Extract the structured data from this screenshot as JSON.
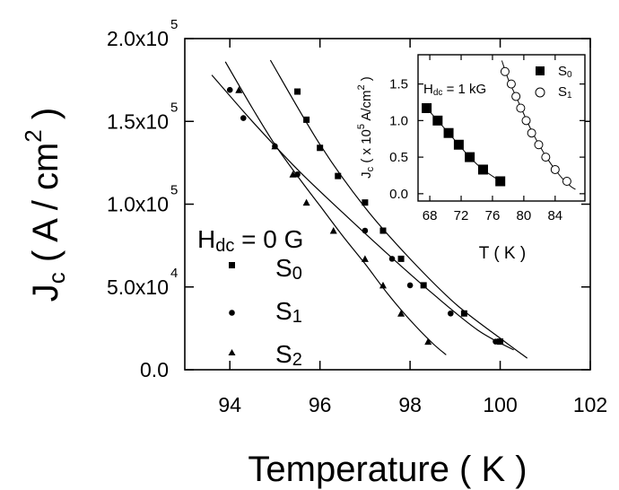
{
  "chart_data": [
    {
      "type": "scatter",
      "xlabel": "Temperature ( K )",
      "ylabel_main": "J",
      "ylabel_sub": "c",
      "ylabel_rest": " ( A / cm",
      "ylabel_sup": "2",
      "ylabel_close": " )",
      "xlim": [
        93,
        102
      ],
      "ylim": [
        0,
        200000
      ],
      "x_ticks": [
        94,
        96,
        98,
        100,
        102
      ],
      "x_tick_labels": [
        "94",
        "96",
        "98",
        "100",
        "102"
      ],
      "y_ticks": [
        {
          "value": 0,
          "mant": "0.0",
          "exp": ""
        },
        {
          "value": 50000,
          "mant": "5.0x10",
          "exp": "4"
        },
        {
          "value": 100000,
          "mant": "1.0x10",
          "exp": "5"
        },
        {
          "value": 150000,
          "mant": "1.5x10",
          "exp": "5"
        },
        {
          "value": 200000,
          "mant": "2.0x10",
          "exp": "5"
        }
      ],
      "annotation": {
        "main": "H",
        "sub": "dc",
        "rest": " = 0 G"
      },
      "series": [
        {
          "name": "S0",
          "label_main": "S",
          "label_sub": "0",
          "marker": "square",
          "x": [
            95.5,
            95.7,
            96.0,
            96.4,
            97.0,
            97.4,
            97.8,
            98.3,
            99.2,
            100.0
          ],
          "y": [
            168000,
            151000,
            134000,
            117000,
            101000,
            84000,
            67000,
            51000,
            34000,
            17000
          ],
          "fit": {
            "x": [
              94.9,
              96.0,
              97.0,
              98.0,
              99.0,
              100.0,
              100.6
            ],
            "y": [
              187000,
              136000,
              98000,
              67000,
              40000,
              19000,
              7000
            ]
          }
        },
        {
          "name": "S1",
          "label_main": "S",
          "label_sub": "1",
          "marker": "circle",
          "x": [
            94.0,
            94.3,
            95.0,
            95.5,
            97.0,
            97.6,
            98.0,
            98.9,
            99.9
          ],
          "y": [
            169000,
            152000,
            135000,
            118000,
            84000,
            67000,
            51000,
            34000,
            17000
          ],
          "fit": {
            "x": [
              93.6,
              94.5,
              95.5,
              96.5,
              97.5,
              98.5,
              99.5,
              100.3
            ],
            "y": [
              178000,
              150000,
              121000,
              95000,
              70000,
              46000,
              24000,
              12000
            ]
          }
        },
        {
          "name": "S2",
          "label_main": "S",
          "label_sub": "2",
          "marker": "triangle",
          "x": [
            94.2,
            95.0,
            95.4,
            95.7,
            96.3,
            97.0,
            97.4,
            97.8,
            98.4
          ],
          "y": [
            169000,
            135000,
            118000,
            101000,
            84000,
            67000,
            51000,
            34000,
            17000
          ],
          "fit": {
            "x": [
              93.9,
              94.5,
              95.0,
              95.5,
              96.0,
              96.5,
              97.0,
              97.5,
              98.0,
              98.5,
              98.8
            ],
            "y": [
              186000,
              158000,
              136000,
              117000,
              99000,
              81000,
              64000,
              46000,
              30000,
              16000,
              9000
            ]
          }
        }
      ]
    },
    {
      "type": "scatter",
      "xlabel": "T ( K )",
      "ylabel_main": "J",
      "ylabel_sub": "c",
      "ylabel_rest": " ( x 10",
      "ylabel_sup1": "5",
      "ylabel_rest2": " A/cm",
      "ylabel_sup2": "2",
      "ylabel_close": " )",
      "xlim": [
        66.5,
        87.8
      ],
      "ylim": [
        -0.1,
        1.9
      ],
      "x_ticks": [
        68,
        72,
        76,
        80,
        84
      ],
      "x_tick_labels": [
        "68",
        "72",
        "76",
        "80",
        "84"
      ],
      "y_ticks": [
        0.0,
        0.5,
        1.0,
        1.5
      ],
      "y_tick_labels": [
        "0.0",
        "0.5",
        "1.0",
        "1.5"
      ],
      "annotation": {
        "main": "H",
        "sub": "dc",
        "rest": " = 1 kG"
      },
      "series": [
        {
          "name": "S0",
          "label_main": "S",
          "label_sub": "0",
          "marker": "filled-square",
          "x": [
            67.6,
            69.0,
            70.4,
            71.7,
            73.1,
            74.8,
            77.0
          ],
          "y": [
            1.17,
            1.0,
            0.83,
            0.67,
            0.5,
            0.33,
            0.17
          ],
          "fit": {
            "x": [
              67.6,
              69.0,
              70.4,
              71.7,
              73.1,
              74.8,
              77.0
            ],
            "y": [
              1.17,
              1.0,
              0.83,
              0.67,
              0.5,
              0.33,
              0.17
            ]
          }
        },
        {
          "name": "S1",
          "label_main": "S",
          "label_sub": "1",
          "marker": "open-circle",
          "x": [
            77.6,
            78.4,
            79.0,
            79.6,
            80.3,
            81.0,
            81.9,
            82.8,
            84.0,
            85.5
          ],
          "y": [
            1.67,
            1.5,
            1.33,
            1.17,
            1.0,
            0.83,
            0.67,
            0.5,
            0.33,
            0.17
          ],
          "fit": {
            "x": [
              77.2,
              78.0,
              79.0,
              80.0,
              81.0,
              82.0,
              83.0,
              84.0,
              85.0,
              86.0,
              86.6
            ],
            "y": [
              1.82,
              1.57,
              1.33,
              1.09,
              0.86,
              0.66,
              0.48,
              0.33,
              0.2,
              0.1,
              0.06
            ]
          }
        }
      ]
    }
  ]
}
